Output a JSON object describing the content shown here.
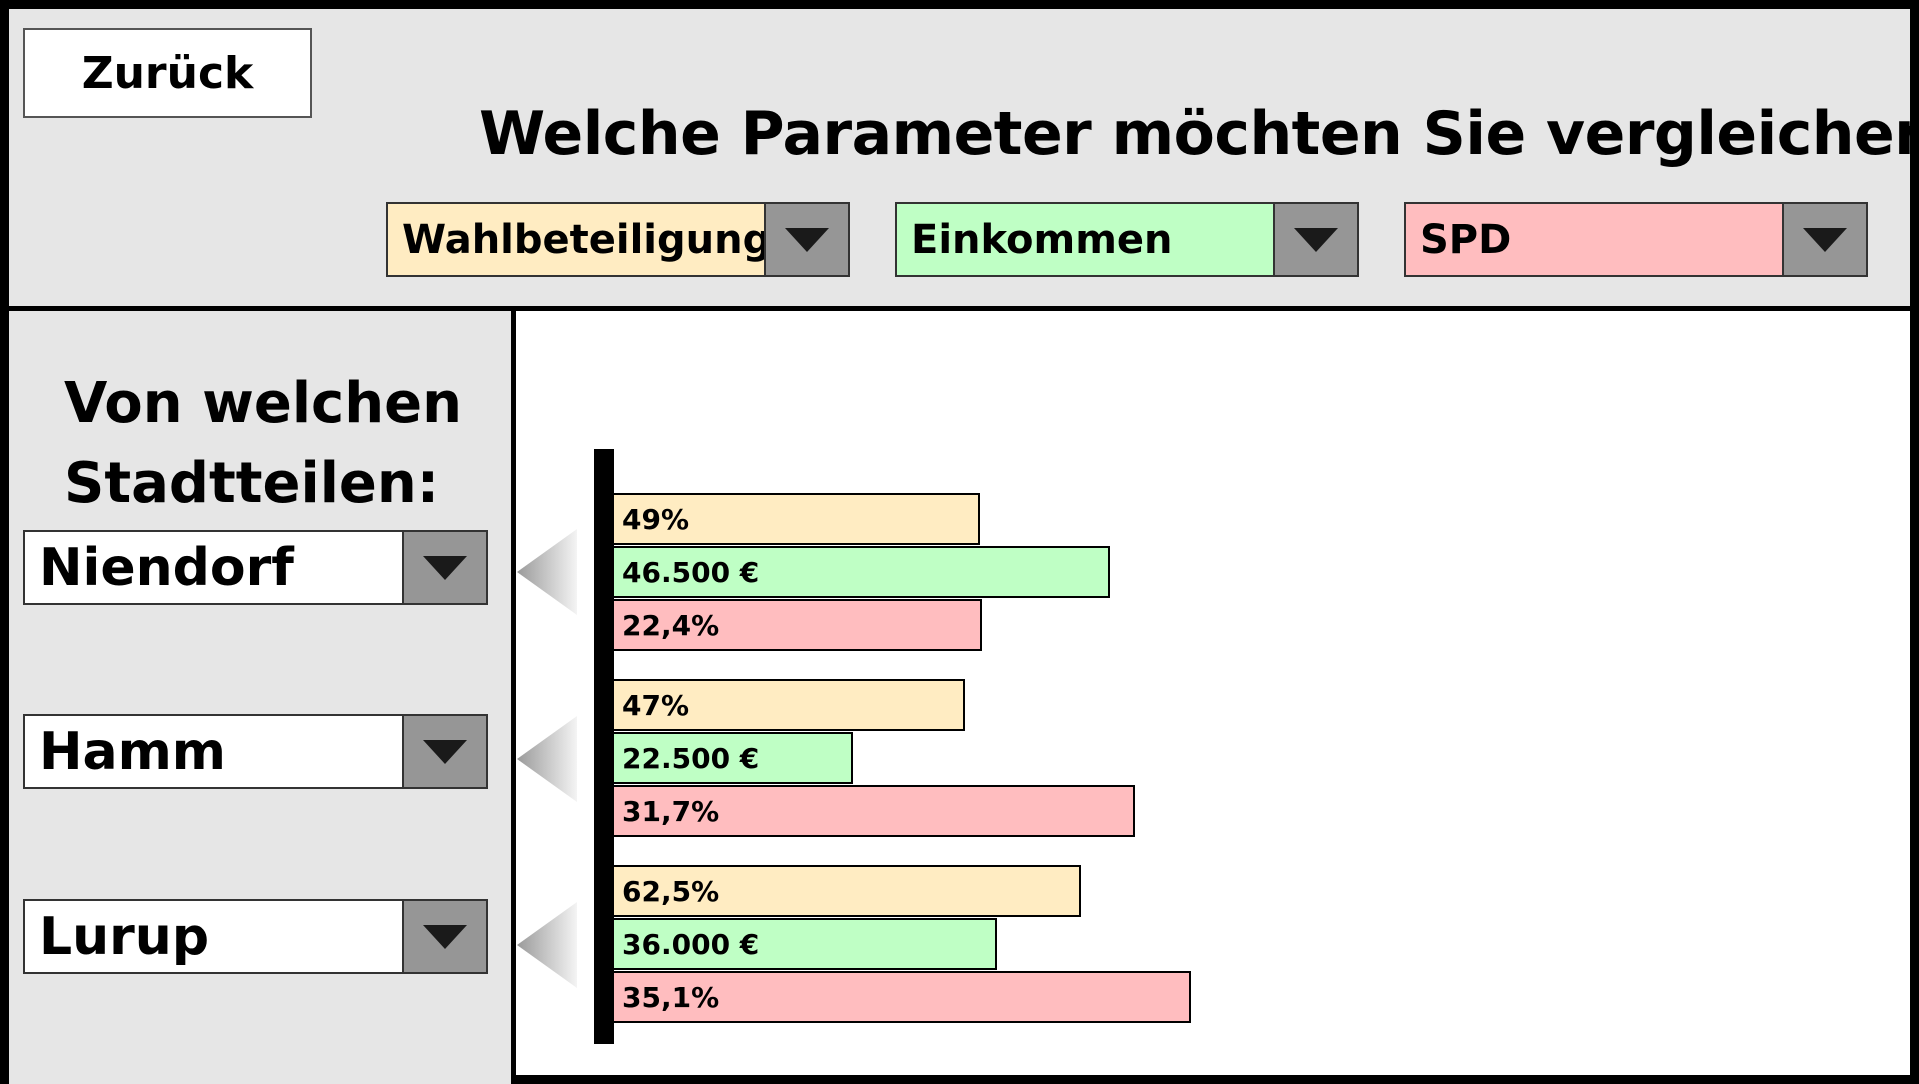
{
  "colors": {
    "turnout": "#ffecc2",
    "income": "#bfffc5",
    "party": "#ffbdbf",
    "panel_bg": "#e6e6e6",
    "arrow_bg": "#969696"
  },
  "header": {
    "back_label": "Zurück",
    "question": "Welche Parameter möchten Sie vergleichen:",
    "params": [
      {
        "value": "Wahlbeteiligung",
        "color": "#ffecc2"
      },
      {
        "value": "Einkommen",
        "color": "#bfffc5"
      },
      {
        "value": "SPD",
        "color": "#ffbdbf"
      }
    ]
  },
  "sidebar": {
    "title_line1": "Von welchen",
    "title_line2": "Stadtteilen:",
    "districts": [
      "Niendorf",
      "Hamm",
      "Lurup"
    ]
  },
  "chart_data": {
    "type": "bar",
    "orientation": "horizontal",
    "categories": [
      "Niendorf",
      "Hamm",
      "Lurup"
    ],
    "series": [
      {
        "name": "Wahlbeteiligung",
        "values": [
          49,
          47,
          62.5
        ],
        "labels": [
          "49%",
          "47%",
          "62,5%"
        ],
        "color": "#ffecc2"
      },
      {
        "name": "Einkommen",
        "values": [
          46500,
          22500,
          36000
        ],
        "labels": [
          "46.500 €",
          "22.500 €",
          "36.000 €"
        ],
        "color": "#bfffc5"
      },
      {
        "name": "SPD",
        "values": [
          22.4,
          31.7,
          35.1
        ],
        "labels": [
          "22,4%",
          "31,7%",
          "35,1%"
        ],
        "color": "#ffbdbf"
      }
    ]
  }
}
